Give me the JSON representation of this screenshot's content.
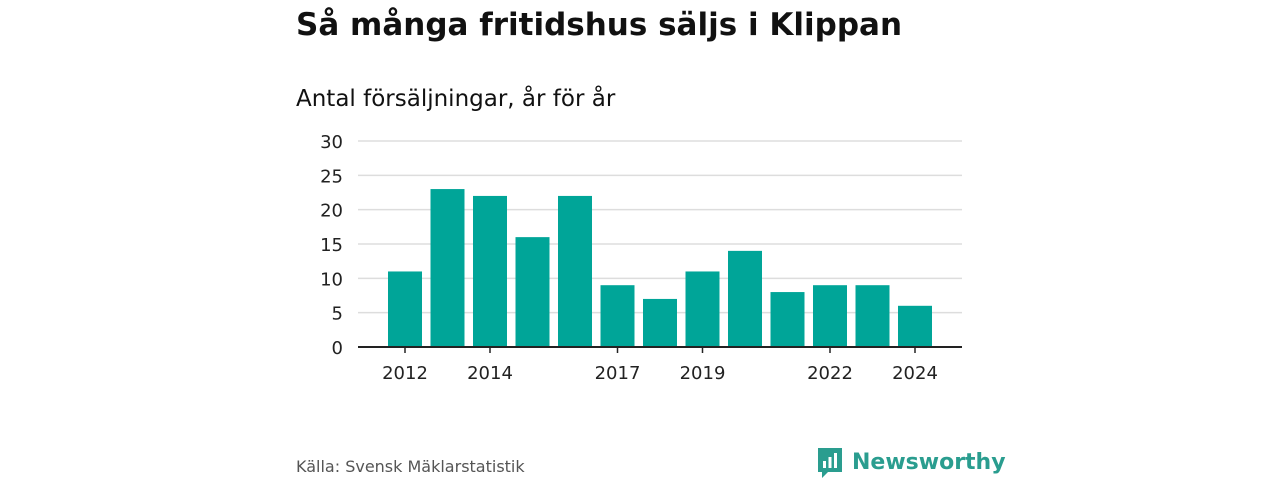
{
  "chart_data": {
    "type": "bar",
    "title": "Så många fritidshus säljs i Klippan",
    "subtitle": "Antal försäljningar, år för år",
    "categories": [
      "2012",
      "2013",
      "2014",
      "2015",
      "2016",
      "2017",
      "2018",
      "2019",
      "2020",
      "2021",
      "2022",
      "2023",
      "2024"
    ],
    "values": [
      11,
      23,
      22,
      16,
      22,
      9,
      7,
      11,
      14,
      8,
      9,
      9,
      6
    ],
    "x_tick_labels": [
      "2012",
      "2014",
      "2017",
      "2019",
      "2022",
      "2024"
    ],
    "y_ticks": [
      "0",
      "5",
      "10",
      "15",
      "20",
      "25",
      "30"
    ],
    "ylim": [
      0,
      30
    ],
    "grid": true,
    "bar_color": "#00a598"
  },
  "footer": {
    "source": "Källa: Svensk Mäklarstatistik",
    "brand": "Newsworthy",
    "brand_icon": "newsworthy-logo-icon",
    "brand_color": "#2a9d8f"
  }
}
